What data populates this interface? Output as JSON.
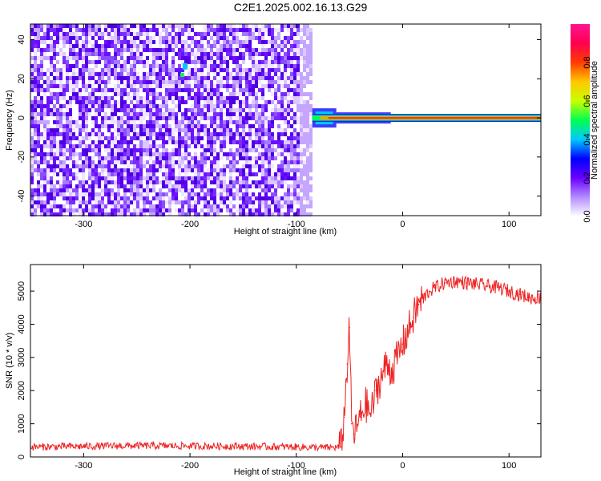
{
  "title": "C2E1.2025.002.16.13.G29",
  "chart_data": [
    {
      "type": "heatmap",
      "xlabel": "Height of straight line (km)",
      "ylabel": "Frequency (Hz)",
      "xlim": [
        -350,
        130
      ],
      "ylim": [
        -50,
        48
      ],
      "x_ticks": [
        -300,
        -200,
        -100,
        0,
        100
      ],
      "y_ticks": [
        -40,
        -20,
        0,
        20,
        40
      ],
      "x_tick_labels": [
        "-300",
        "-200",
        "-100",
        "0",
        "100"
      ],
      "y_tick_labels": [
        "-40",
        "-20",
        "0",
        "20",
        "40"
      ],
      "colorbar": {
        "label": "Normalized spectral amplitude",
        "range": [
          0,
          1
        ],
        "ticks": [
          0,
          0.2,
          0.4,
          0.6,
          0.8
        ],
        "tick_labels": [
          "0.0",
          "0.2",
          "0.4",
          "0.6",
          "0.8"
        ],
        "colors": [
          "#ffffff",
          "#b48cff",
          "#6a00ff",
          "#0000ff",
          "#00c8ff",
          "#00ff50",
          "#c8ff00",
          "#ffc800",
          "#ff3c00",
          "#ff0050",
          "#ff1493"
        ]
      },
      "regions": [
        {
          "x_range": [
            -350,
            -85
          ],
          "freq_range": [
            -50,
            48
          ],
          "description_level": 0.15
        },
        {
          "x_range": [
            -85,
            130
          ],
          "freq_center": 0,
          "level": 0.95
        }
      ]
    },
    {
      "type": "line",
      "xlabel": "Height of straight line (km)",
      "ylabel": "SNR (10 * v/v)",
      "xlim": [
        -350,
        130
      ],
      "ylim": [
        0,
        5800
      ],
      "x_ticks": [
        -300,
        -200,
        -100,
        0,
        100
      ],
      "y_ticks": [
        0,
        1000,
        2000,
        3000,
        4000,
        5000
      ],
      "x_tick_labels": [
        "-300",
        "-200",
        "-100",
        "0",
        "100"
      ],
      "y_tick_labels": [
        "0",
        "1000",
        "2000",
        "3000",
        "4000",
        "5000"
      ],
      "color": "#ee2222",
      "series": [
        {
          "x": [
            -350,
            -300,
            -250,
            -200,
            -150,
            -100,
            -70,
            -58,
            -55,
            -52,
            -50,
            -48,
            -45,
            -40,
            -35,
            -30,
            -25,
            -20,
            -15,
            -10,
            -5,
            0,
            5,
            10,
            15,
            20,
            25,
            30,
            40,
            50,
            60,
            70,
            80,
            90,
            100,
            110,
            120,
            130
          ],
          "y": [
            300,
            320,
            340,
            330,
            320,
            300,
            280,
            300,
            1200,
            2800,
            3900,
            1000,
            700,
            1200,
            1600,
            1300,
            2000,
            2400,
            2800,
            2600,
            3000,
            3400,
            3800,
            4200,
            4600,
            4800,
            5000,
            5100,
            5250,
            5300,
            5250,
            5200,
            5150,
            5100,
            5000,
            4900,
            4800,
            4800
          ]
        }
      ]
    }
  ]
}
